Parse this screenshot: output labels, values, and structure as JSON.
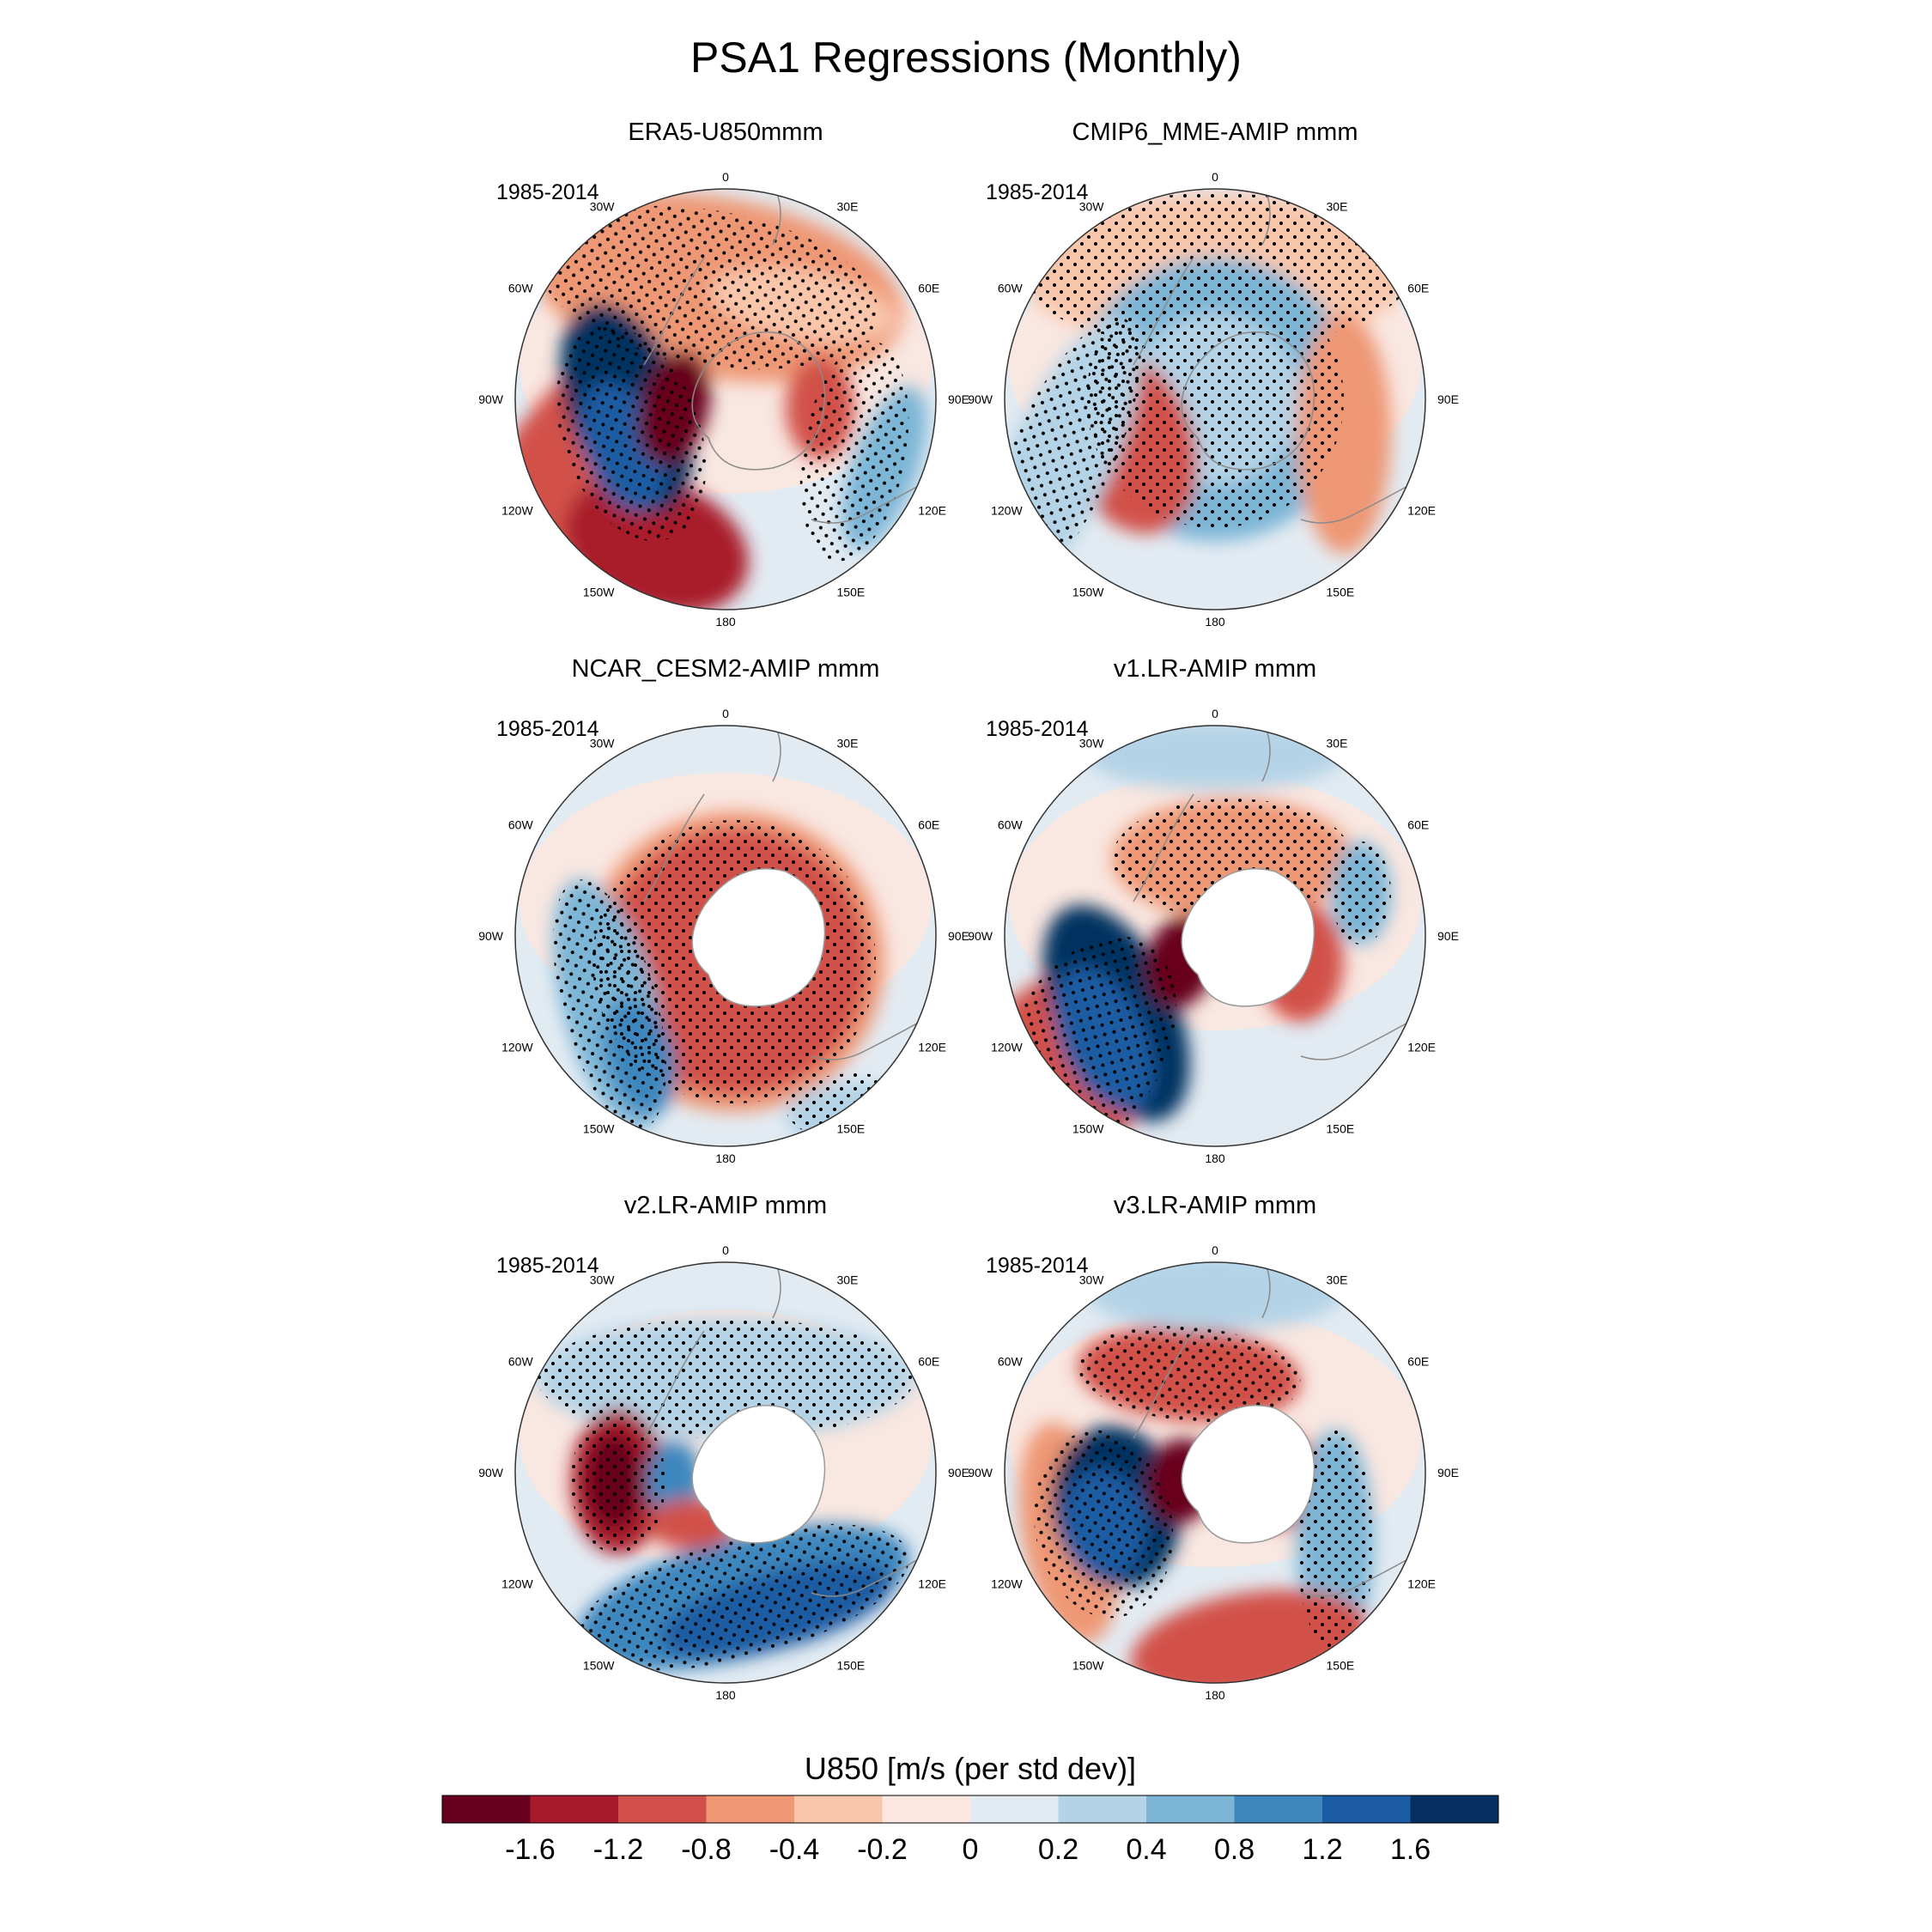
{
  "chart_data": {
    "type": "heatmap",
    "title": "PSA1 Regressions (Monthly)",
    "projection": "south polar stereographic",
    "longitude_labels": [
      "0",
      "30E",
      "60E",
      "90E",
      "120E",
      "150E",
      "180",
      "150W",
      "120W",
      "90W",
      "60W",
      "30W"
    ],
    "panels": [
      {
        "title": "ERA5-U850mmm",
        "period": "1985-2014",
        "antarctica_masked": false
      },
      {
        "title": "CMIP6_MME-AMIP  mmm",
        "period": "1985-2014",
        "antarctica_masked": false
      },
      {
        "title": "NCAR_CESM2-AMIP  mmm",
        "period": "1985-2014",
        "antarctica_masked": true
      },
      {
        "title": "v1.LR-AMIP  mmm",
        "period": "1985-2014",
        "antarctica_masked": true
      },
      {
        "title": "v2.LR-AMIP  mmm",
        "period": "1985-2014",
        "antarctica_masked": true
      },
      {
        "title": "v3.LR-AMIP  mmm",
        "period": "1985-2014",
        "antarctica_masked": true
      }
    ],
    "colorbar": {
      "title": "U850 [m/s (per std dev)]",
      "tick_labels": [
        "-1.6",
        "-1.2",
        "-0.8",
        "-0.4",
        "-0.2",
        "0",
        "0.2",
        "0.4",
        "0.8",
        "1.2",
        "1.6"
      ],
      "colors": [
        "#67001f",
        "#a91a2c",
        "#d1514a",
        "#ee9775",
        "#f9c6ac",
        "#fbe7df",
        "#e3ebf2",
        "#b4d3e6",
        "#7cb5d6",
        "#3e87be",
        "#1a5ba2",
        "#053061"
      ]
    }
  }
}
